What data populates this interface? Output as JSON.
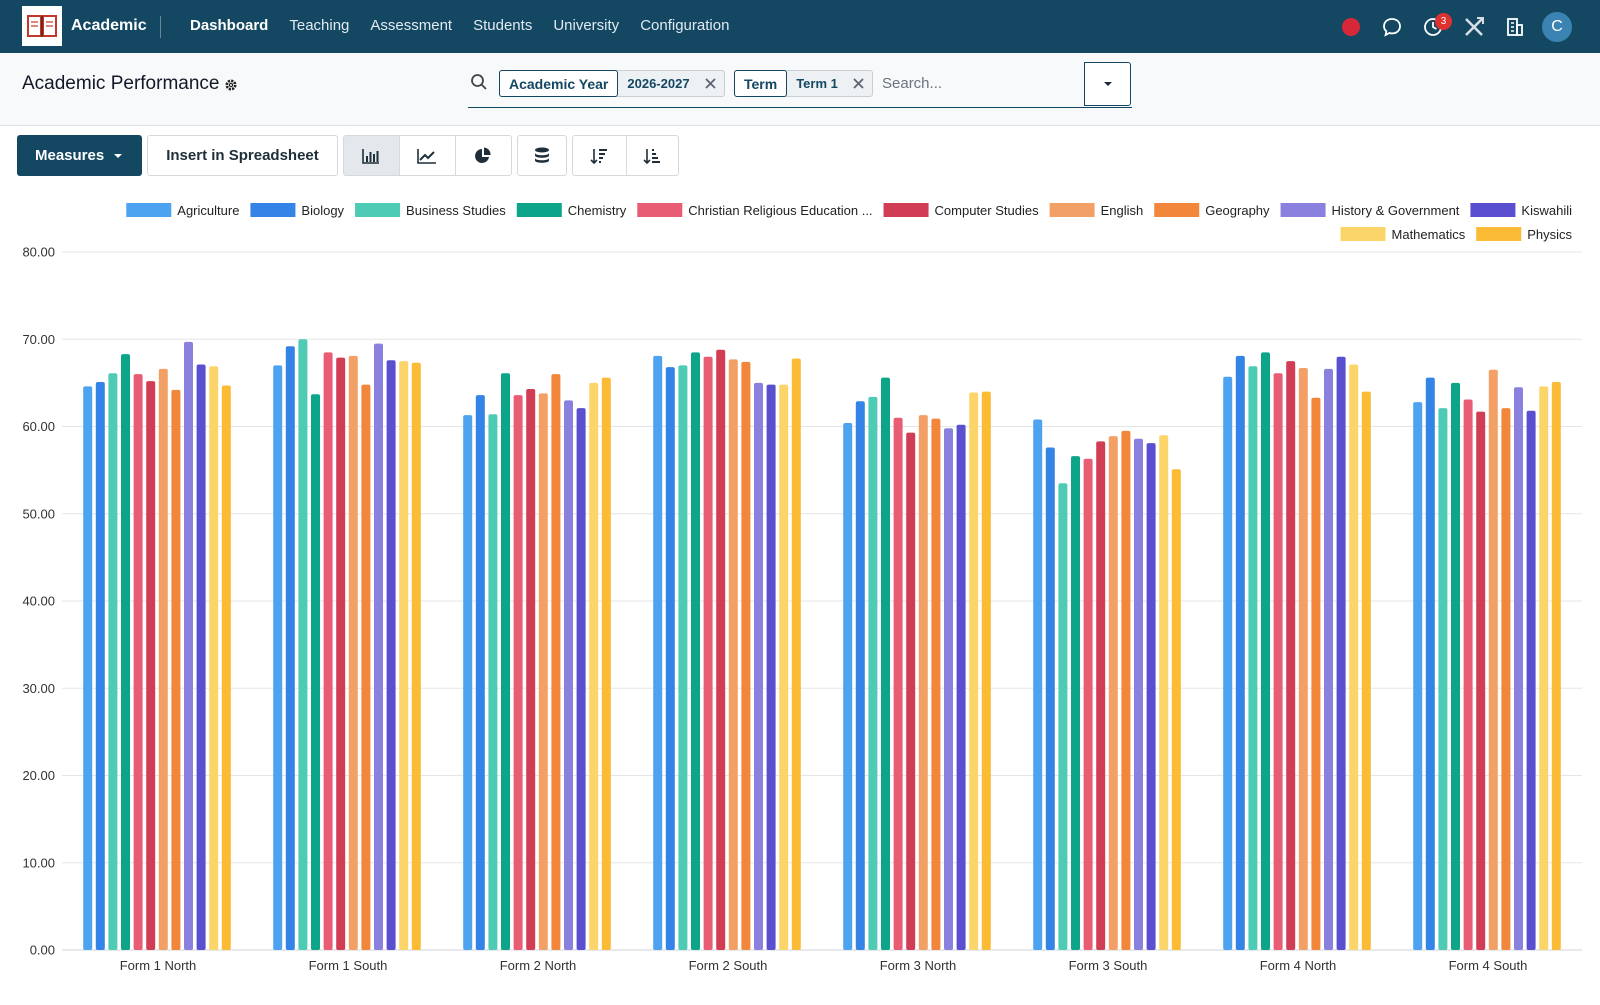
{
  "navbar": {
    "app_name": "Academic",
    "menu": [
      "Dashboard",
      "Teaching",
      "Assessment",
      "Students",
      "University",
      "Configuration"
    ],
    "active_menu": "Dashboard",
    "activity_badge": "3",
    "avatar_initial": "C",
    "icons": [
      "book-logo-icon",
      "record-icon",
      "chat-icon",
      "clock-icon",
      "tools-icon",
      "building-icon"
    ]
  },
  "control_panel": {
    "title": "Academic Performance",
    "facets": [
      {
        "label": "Academic Year",
        "value": "2026-2027"
      },
      {
        "label": "Term",
        "value": "Term 1"
      }
    ],
    "search_placeholder": "Search..."
  },
  "toolbar": {
    "measures_label": "Measures",
    "insert_label": "Insert in Spreadsheet",
    "view_buttons": [
      "bar-chart-icon",
      "line-chart-icon",
      "pie-chart-icon",
      "stack-icon",
      "sort-descending-icon",
      "sort-ascending-icon"
    ],
    "active_view": "bar-chart-icon"
  },
  "colors": {
    "navbar": "#134762",
    "primary": "#134762"
  },
  "chart_data": {
    "type": "bar",
    "ylim": [
      0,
      80
    ],
    "yticks": [
      "0.00",
      "10.00",
      "20.00",
      "30.00",
      "40.00",
      "50.00",
      "60.00",
      "70.00",
      "80.00"
    ],
    "grid": true,
    "legend_position": "top-right",
    "categories": [
      "Form 1 North",
      "Form 1 South",
      "Form 2 North",
      "Form 2 South",
      "Form 3 North",
      "Form 3 South",
      "Form 4 North",
      "Form 4 South"
    ],
    "series": [
      {
        "name": "Agriculture",
        "color": "#4ea3f0",
        "values": [
          64.6,
          67.0,
          61.3,
          68.1,
          60.4,
          60.8,
          65.7,
          62.8
        ]
      },
      {
        "name": "Biology",
        "color": "#3484e8",
        "values": [
          65.1,
          69.2,
          63.6,
          66.8,
          62.9,
          57.6,
          68.1,
          65.6
        ]
      },
      {
        "name": "Business Studies",
        "color": "#4ecbb4",
        "values": [
          66.1,
          70.0,
          61.4,
          67.0,
          63.4,
          53.5,
          66.9,
          62.1
        ]
      },
      {
        "name": "Chemistry",
        "color": "#0ca58a",
        "values": [
          68.3,
          63.7,
          66.1,
          68.5,
          65.6,
          56.6,
          68.5,
          65.0
        ]
      },
      {
        "name": "Christian Religious Education ...",
        "color": "#e85d73",
        "values": [
          66.0,
          68.5,
          63.6,
          68.0,
          61.0,
          56.3,
          66.1,
          63.1
        ]
      },
      {
        "name": "Computer Studies",
        "color": "#d23d56",
        "values": [
          65.2,
          67.9,
          64.3,
          68.8,
          59.3,
          58.3,
          67.5,
          61.7
        ]
      },
      {
        "name": "English",
        "color": "#f3a066",
        "values": [
          66.6,
          68.1,
          63.8,
          67.7,
          61.3,
          58.9,
          66.7,
          66.5
        ]
      },
      {
        "name": "Geography",
        "color": "#f2863a",
        "values": [
          64.2,
          64.8,
          66.0,
          67.4,
          60.9,
          59.5,
          63.3,
          62.1
        ]
      },
      {
        "name": "History & Government",
        "color": "#8a80de",
        "values": [
          69.7,
          69.5,
          63.0,
          65.0,
          59.8,
          58.6,
          66.6,
          64.5
        ]
      },
      {
        "name": "Kiswahili",
        "color": "#5a4fcf",
        "values": [
          67.1,
          67.6,
          62.1,
          64.8,
          60.2,
          58.1,
          68.0,
          61.8
        ]
      },
      {
        "name": "Mathematics",
        "color": "#fcd56a",
        "values": [
          66.9,
          67.5,
          65.0,
          64.8,
          63.9,
          59.0,
          67.1,
          64.6
        ]
      },
      {
        "name": "Physics",
        "color": "#fbbb34",
        "values": [
          64.7,
          67.3,
          65.6,
          67.8,
          64.0,
          55.1,
          64.0,
          65.1
        ]
      }
    ]
  }
}
